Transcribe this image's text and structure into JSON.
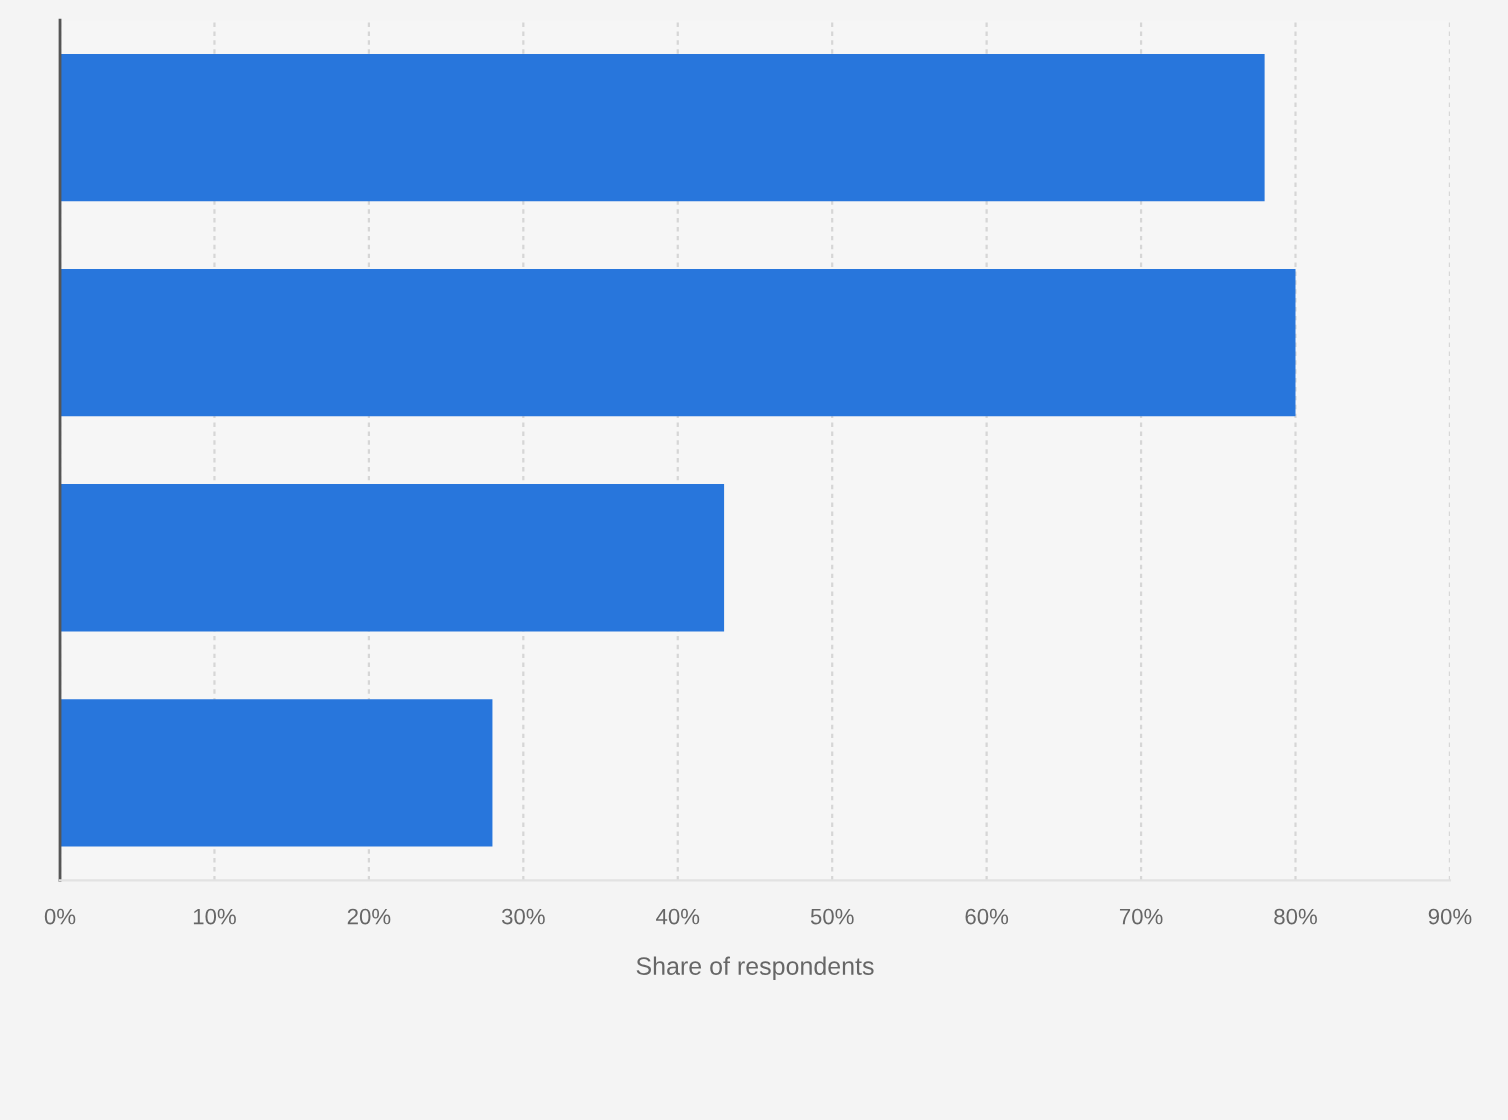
{
  "chart_data": {
    "type": "bar",
    "orientation": "horizontal",
    "categories": [
      null,
      null,
      null,
      null
    ],
    "values": [
      78,
      80,
      43,
      28
    ],
    "color": "#2876dc",
    "xlabel": "Share of respondents",
    "xlim": [
      0,
      90
    ],
    "xticks": [
      {
        "value": 0,
        "label": "0%"
      },
      {
        "value": 10,
        "label": "10%"
      },
      {
        "value": 20,
        "label": "20%"
      },
      {
        "value": 30,
        "label": "30%"
      },
      {
        "value": 40,
        "label": "40%"
      },
      {
        "value": 50,
        "label": "50%"
      },
      {
        "value": 60,
        "label": "60%"
      },
      {
        "value": 70,
        "label": "70%"
      },
      {
        "value": 80,
        "label": "80%"
      },
      {
        "value": 90,
        "label": "90%"
      }
    ],
    "grid": "x",
    "tick_labels": "x"
  }
}
